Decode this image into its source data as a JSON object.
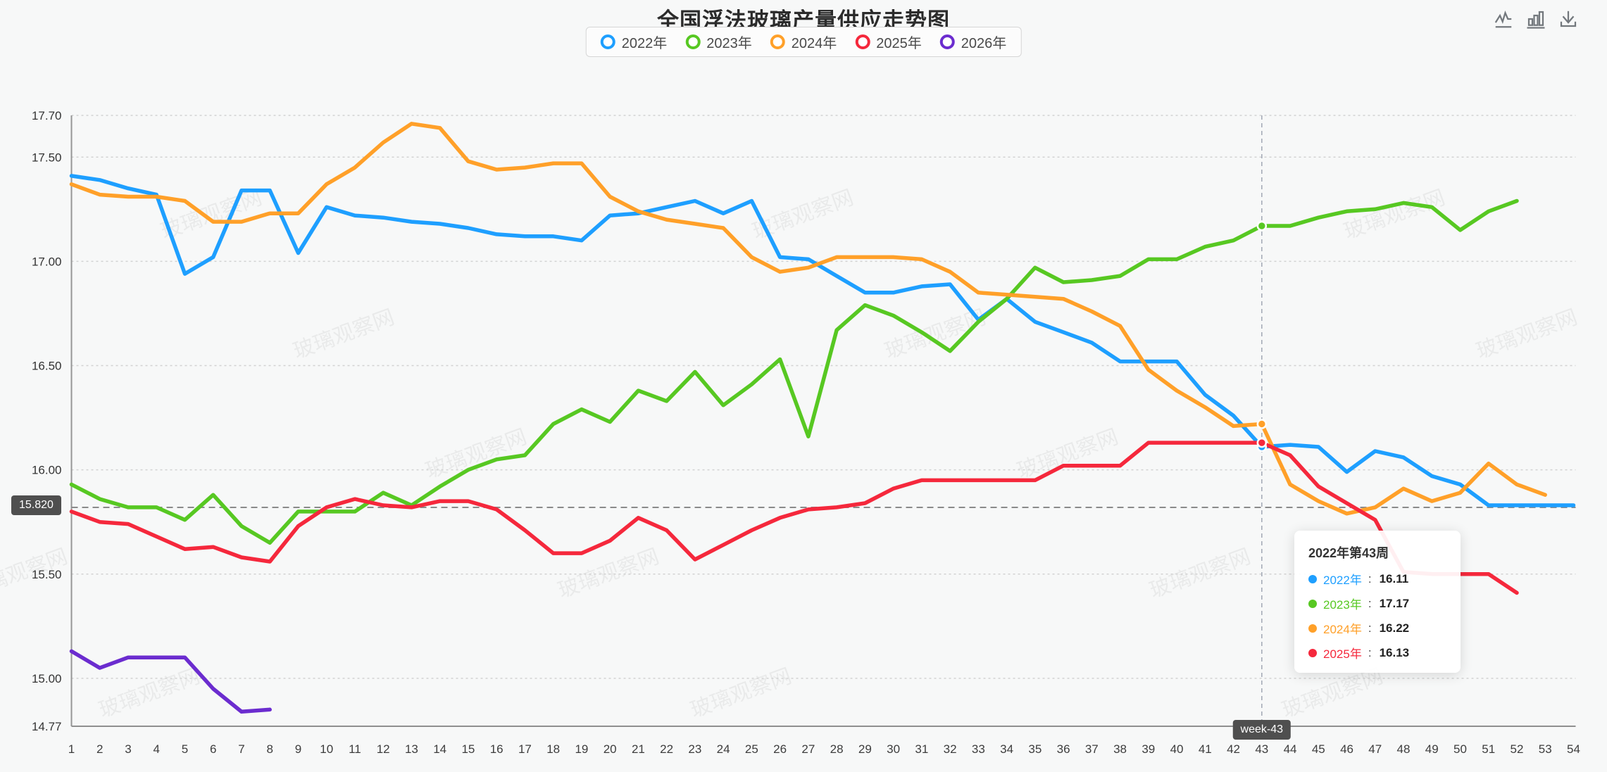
{
  "header": {
    "title": "全国浮法玻璃产量供应走势图"
  },
  "toolbox": {
    "buttons": [
      {
        "name": "switch-to-line",
        "icon": "line-chart-icon"
      },
      {
        "name": "switch-to-bar",
        "icon": "bar-chart-icon"
      },
      {
        "name": "save-image",
        "icon": "download-icon"
      }
    ]
  },
  "legend": {
    "items": [
      {
        "label": "2022年",
        "color": "#1e9fff"
      },
      {
        "label": "2023年",
        "color": "#57c822"
      },
      {
        "label": "2024年",
        "color": "#ffa029"
      },
      {
        "label": "2025年",
        "color": "#f5283c"
      },
      {
        "label": "2026年",
        "color": "#6b2ccf"
      }
    ]
  },
  "watermark": {
    "text": "玻璃观察网"
  },
  "crosshair": {
    "week": 43,
    "x_badge": "week-43",
    "y_value": 15.82,
    "y_badge": "15.820"
  },
  "tooltip": {
    "title": "2022年第43周",
    "rows": [
      {
        "label": "2022年",
        "value": "16.11",
        "color": "#1e9fff"
      },
      {
        "label": "2023年",
        "value": "17.17",
        "color": "#57c822"
      },
      {
        "label": "2024年",
        "value": "16.22",
        "color": "#ffa029"
      },
      {
        "label": "2025年",
        "value": "16.13",
        "color": "#f5283c"
      }
    ]
  },
  "chart_data": {
    "type": "line",
    "title": "全国浮法玻璃产量供应走势图",
    "xlabel": "week",
    "ylabel": "",
    "ylim": [
      14.77,
      17.7
    ],
    "grid": true,
    "legend_position": "top",
    "y_ticks": [
      "14.77",
      "15.00",
      "15.50",
      "16.00",
      "16.50",
      "17.00",
      "17.50",
      "17.70"
    ],
    "categories": [
      1,
      2,
      3,
      4,
      5,
      6,
      7,
      8,
      9,
      10,
      11,
      12,
      13,
      14,
      15,
      16,
      17,
      18,
      19,
      20,
      21,
      22,
      23,
      24,
      25,
      26,
      27,
      28,
      29,
      30,
      31,
      32,
      33,
      34,
      35,
      36,
      37,
      38,
      39,
      40,
      41,
      42,
      43,
      44,
      45,
      46,
      47,
      48,
      49,
      50,
      51,
      52,
      53,
      54
    ],
    "series": [
      {
        "name": "2022年",
        "color": "#1e9fff",
        "values": [
          17.41,
          17.39,
          17.35,
          17.32,
          16.94,
          17.02,
          17.34,
          17.34,
          17.04,
          17.26,
          17.22,
          17.21,
          17.19,
          17.18,
          17.16,
          17.13,
          17.12,
          17.12,
          17.1,
          17.22,
          17.23,
          17.26,
          17.29,
          17.23,
          17.29,
          17.02,
          17.01,
          16.93,
          16.85,
          16.85,
          16.88,
          16.89,
          16.72,
          16.82,
          16.71,
          16.66,
          16.61,
          16.52,
          16.52,
          16.52,
          16.36,
          16.26,
          16.11,
          16.12,
          16.11,
          15.99,
          16.09,
          16.06,
          15.97,
          15.93,
          15.83,
          15.83,
          15.83,
          15.83
        ]
      },
      {
        "name": "2023年",
        "color": "#57c822",
        "values": [
          15.93,
          15.86,
          15.82,
          15.82,
          15.76,
          15.88,
          15.73,
          15.65,
          15.8,
          15.8,
          15.8,
          15.89,
          15.83,
          15.92,
          16.0,
          16.05,
          16.07,
          16.22,
          16.29,
          16.23,
          16.38,
          16.33,
          16.47,
          16.31,
          16.41,
          16.53,
          16.16,
          16.67,
          16.79,
          16.74,
          16.66,
          16.57,
          16.71,
          16.82,
          16.97,
          16.9,
          16.91,
          16.93,
          17.01,
          17.01,
          17.07,
          17.1,
          17.17,
          17.17,
          17.21,
          17.24,
          17.25,
          17.28,
          17.26,
          17.15,
          17.24,
          17.29,
          null,
          null
        ]
      },
      {
        "name": "2024年",
        "color": "#ffa029",
        "values": [
          17.37,
          17.32,
          17.31,
          17.31,
          17.29,
          17.19,
          17.19,
          17.23,
          17.23,
          17.37,
          17.45,
          17.57,
          17.66,
          17.64,
          17.48,
          17.44,
          17.45,
          17.47,
          17.47,
          17.31,
          17.24,
          17.2,
          17.18,
          17.16,
          17.02,
          16.95,
          16.97,
          17.02,
          17.02,
          17.02,
          17.01,
          16.95,
          16.85,
          16.84,
          16.83,
          16.82,
          16.76,
          16.69,
          16.48,
          16.38,
          16.3,
          16.21,
          16.22,
          15.93,
          15.85,
          15.79,
          15.82,
          15.91,
          15.85,
          15.89,
          16.03,
          15.93,
          15.88,
          null
        ]
      },
      {
        "name": "2025年",
        "color": "#f5283c",
        "values": [
          15.8,
          15.75,
          15.74,
          15.68,
          15.62,
          15.63,
          15.58,
          15.56,
          15.73,
          15.82,
          15.86,
          15.83,
          15.82,
          15.85,
          15.85,
          15.81,
          15.71,
          15.6,
          15.6,
          15.66,
          15.77,
          15.71,
          15.57,
          15.64,
          15.71,
          15.77,
          15.81,
          15.82,
          15.84,
          15.91,
          15.95,
          15.95,
          15.95,
          15.95,
          15.95,
          16.02,
          16.02,
          16.02,
          16.13,
          16.13,
          16.13,
          16.13,
          16.13,
          16.07,
          15.92,
          15.84,
          15.76,
          15.51,
          15.5,
          15.5,
          15.5,
          15.41,
          null,
          null
        ]
      },
      {
        "name": "2026年",
        "color": "#6b2ccf",
        "values": [
          15.13,
          15.05,
          15.1,
          15.1,
          15.1,
          14.95,
          14.84,
          14.85,
          null,
          null,
          null,
          null,
          null,
          null,
          null,
          null,
          null,
          null,
          null,
          null,
          null,
          null,
          null,
          null,
          null,
          null,
          null,
          null,
          null,
          null,
          null,
          null,
          null,
          null,
          null,
          null,
          null,
          null,
          null,
          null,
          null,
          null,
          null,
          null,
          null,
          null,
          null,
          null,
          null,
          null,
          null,
          null,
          null,
          null
        ]
      }
    ]
  }
}
